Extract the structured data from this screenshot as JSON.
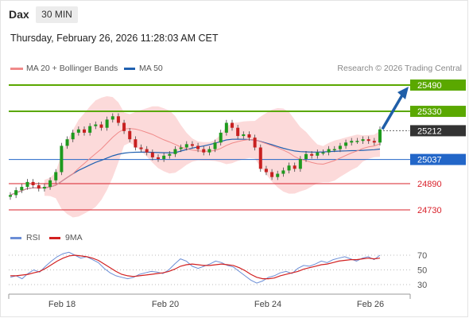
{
  "header": {
    "instrument": "Dax",
    "timeframe": "30 MIN",
    "datetime": "Thursday, February 26, 2026 11:28:03 AM CET"
  },
  "legend": {
    "ma20_label": "MA 20 + Bollinger Bands",
    "ma50_label": "MA 50",
    "credit": "Research © 2026 Trading Central",
    "rsi_label": "RSI",
    "ma9_label": "9MA"
  },
  "colors": {
    "resistance": "#5aa800",
    "pivot": "#2266c8",
    "support": "#d9202a",
    "last": "#333333",
    "arrow": "#1f5ea8",
    "candle_up": "#1e9a1e",
    "candle_down": "#c82020",
    "bollinger": "#fbd3d3",
    "ma20": "#f08a8a",
    "ma50": "#2060b0",
    "rsi": "#6b8ed6",
    "rsi_ma": "#d22020"
  },
  "chart_data": [
    {
      "type": "candlestick",
      "title": "Dax 30 MIN",
      "x_ticks": [
        "Feb 18",
        "Feb 20",
        "Feb 24",
        "Feb 26"
      ],
      "levels": [
        {
          "label": "25490",
          "value": 25490,
          "kind": "resistance"
        },
        {
          "label": "25330",
          "value": 25330,
          "kind": "resistance"
        },
        {
          "label": "25212",
          "value": 25212,
          "kind": "last"
        },
        {
          "label": "25037",
          "value": 25037,
          "kind": "pivot"
        },
        {
          "label": "24890",
          "value": 24890,
          "kind": "support"
        },
        {
          "label": "24730",
          "value": 24730,
          "kind": "support"
        }
      ],
      "closes": [
        24820,
        24850,
        24870,
        24900,
        24880,
        24860,
        24870,
        24910,
        24960,
        25120,
        25160,
        25200,
        25220,
        25200,
        25240,
        25250,
        25230,
        25280,
        25300,
        25260,
        25210,
        25160,
        25110,
        25100,
        25080,
        25050,
        25040,
        25060,
        25070,
        25100,
        25110,
        25130,
        25120,
        25100,
        25080,
        25100,
        25140,
        25200,
        25260,
        25230,
        25180,
        25190,
        25170,
        25110,
        24980,
        24960,
        24930,
        24950,
        24970,
        25000,
        24980,
        25040,
        25070,
        25060,
        25080,
        25080,
        25100,
        25100,
        25120,
        25140,
        25150,
        25150,
        25160,
        25150,
        25140,
        25220
      ],
      "forecast": {
        "from": 25212,
        "to": 25490
      }
    },
    {
      "type": "line",
      "title": "RSI",
      "series": [
        {
          "name": "RSI"
        },
        {
          "name": "9MA"
        }
      ],
      "y_ticks": [
        70,
        50,
        30
      ],
      "ylim": [
        20,
        80
      ],
      "rsi": [
        40,
        42,
        38,
        45,
        50,
        47,
        55,
        62,
        68,
        72,
        74,
        70,
        66,
        68,
        64,
        60,
        52,
        46,
        42,
        40,
        38,
        40,
        44,
        46,
        48,
        47,
        45,
        50,
        58,
        65,
        62,
        55,
        52,
        55,
        58,
        62,
        60,
        56,
        54,
        48,
        42,
        36,
        32,
        35,
        40,
        42,
        46,
        48,
        45,
        52,
        56,
        55,
        58,
        62,
        60,
        64,
        66,
        68,
        65,
        62,
        66,
        68,
        64,
        70
      ],
      "rsi_ma": [
        42,
        42,
        43,
        44,
        46,
        48,
        52,
        57,
        62,
        66,
        69,
        70,
        69,
        68,
        66,
        63,
        58,
        53,
        48,
        44,
        42,
        41,
        42,
        43,
        44,
        45,
        46,
        48,
        51,
        55,
        57,
        58,
        57,
        56,
        56,
        57,
        58,
        57,
        56,
        53,
        49,
        44,
        40,
        38,
        38,
        39,
        42,
        44,
        46,
        48,
        51,
        53,
        55,
        57,
        58,
        60,
        62,
        63,
        64,
        64,
        65,
        66,
        65,
        66
      ]
    }
  ]
}
